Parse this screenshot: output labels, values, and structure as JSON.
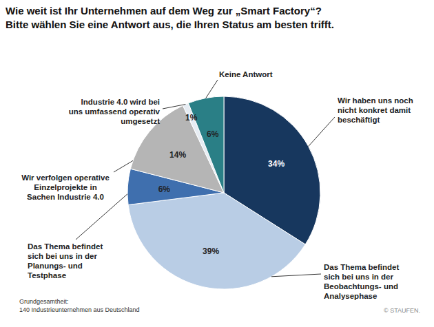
{
  "chart_data": {
    "type": "pie",
    "title": "Wie weit ist Ihr Unternehmen auf dem Weg zur „Smart Factory“?",
    "subtitle": "Bitte wählen Sie eine Antwort aus, die Ihren Status am besten trifft.",
    "categories": [
      "Wir haben uns noch nicht konkret damit beschäftigt",
      "Das Thema befindet sich bei uns in der Beobachtungs- und Analysephase",
      "Das Thema befindet sich bei uns in der Planungs- und Testphase",
      "Wir verfolgen operative Einzelprojekte in Sachen Industrie 4.0",
      "Industrie 4.0 wird bei uns umfassend operativ umgesetzt",
      "Keine Antwort"
    ],
    "values": [
      34,
      39,
      6,
      14,
      1,
      6
    ],
    "value_labels": [
      "34%",
      "39%",
      "6%",
      "14%",
      "1%",
      "6%"
    ],
    "colors": [
      "#17375e",
      "#b9cde5",
      "#3f6fae",
      "#b5b5b5",
      "#e6ecf3",
      "#2a7f86"
    ],
    "data_labels": true,
    "footnote": [
      "Grundgesamtheit:",
      "140 Industrieunternehmen aus Deutschland"
    ],
    "credit": "© STAUFEN."
  }
}
